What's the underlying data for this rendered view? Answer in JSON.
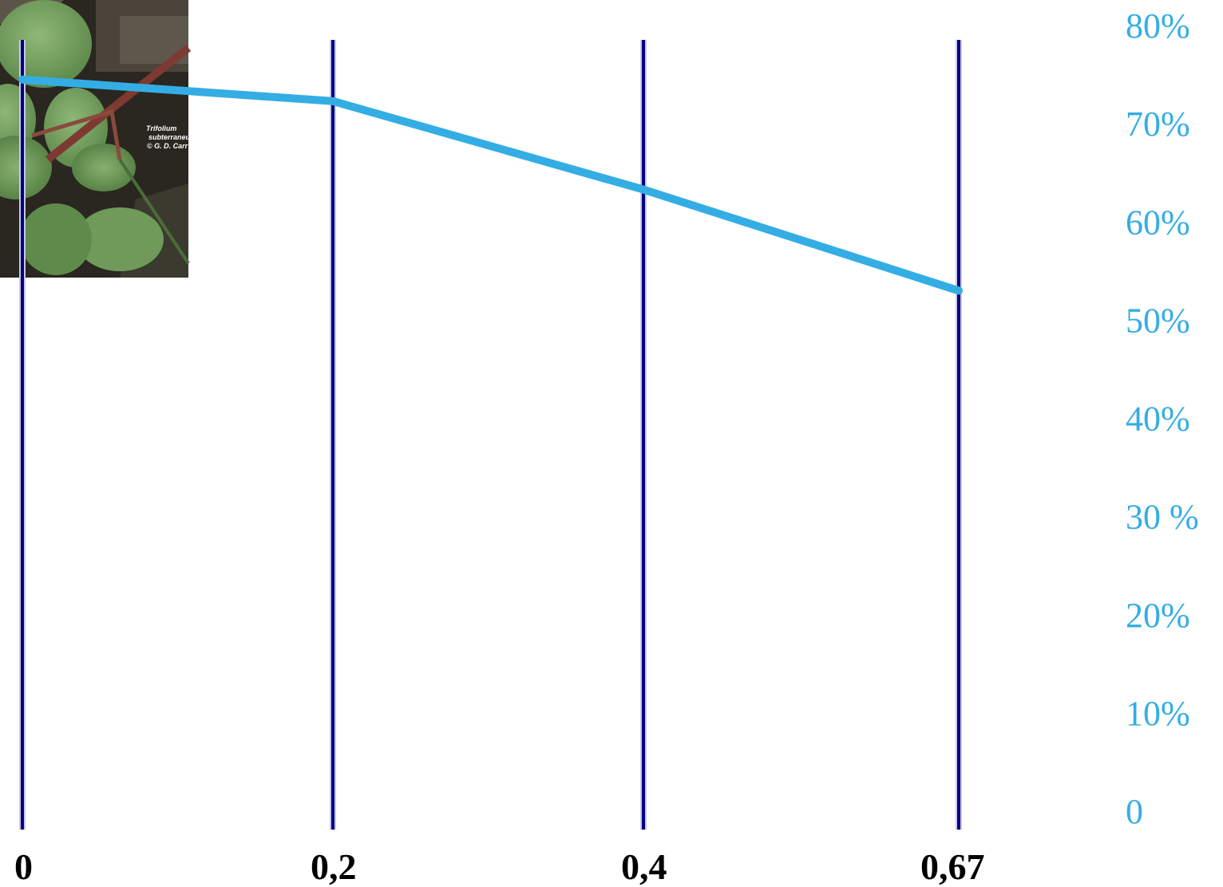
{
  "photo": {
    "caption_line1": "Trifolium",
    "caption_line2": "subterraneum",
    "caption_line3": "© G. D. Carr"
  },
  "colors": {
    "line": "#34ade4",
    "gridline": "#000080",
    "ytick": "#34ade4",
    "xtick": "#000000"
  },
  "chart_data": {
    "type": "line",
    "title": "",
    "xlabel": "",
    "ylabel": "",
    "x": [
      0,
      0.2,
      0.4,
      0.67
    ],
    "xtick_labels": [
      "0",
      "0,2",
      "0,4",
      "0,67"
    ],
    "series": [
      {
        "values": [
          74.5,
          72.3,
          63.3,
          53.0
        ]
      }
    ],
    "ylim": [
      0,
      83
    ],
    "ytick_values": [
      0,
      10,
      20,
      30,
      40,
      50,
      60,
      70,
      80
    ],
    "ytick_labels": [
      "0",
      "10%",
      "20%",
      "30 %",
      "40%",
      "50%",
      "60%",
      "70%",
      "80%"
    ],
    "yaxis_side": "right",
    "grid": "vertical lines at x categories"
  }
}
